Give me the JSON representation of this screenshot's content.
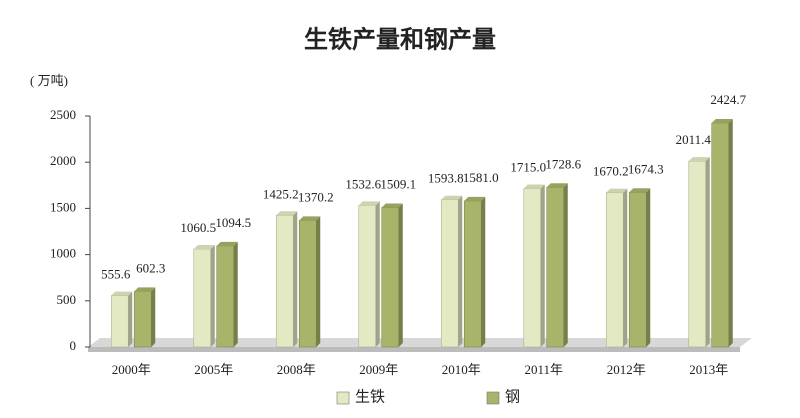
{
  "chart_data": {
    "type": "bar",
    "title": "生铁产量和钢产量",
    "y_label": "( 万吨)",
    "categories": [
      "2000年",
      "2005年",
      "2008年",
      "2009年",
      "2010年",
      "2011年",
      "2012年",
      "2013年"
    ],
    "series": [
      {
        "name": "生铁",
        "color": "#e3eac3",
        "values": [
          555.6,
          1060.5,
          1425.2,
          1532.6,
          1593.8,
          1715.0,
          1670.2,
          2011.4
        ],
        "value_labels": [
          "555.6",
          "1060.5",
          "1425.2",
          "1532.6",
          "1593.8",
          "1715.0",
          "1670.2",
          "2011.4"
        ]
      },
      {
        "name": "钢",
        "color": "#a8b46a",
        "values": [
          602.3,
          1094.5,
          1370.2,
          1509.1,
          1581.0,
          1728.6,
          1674.3,
          2424.7
        ],
        "value_labels": [
          "602.3",
          "1094.5",
          "1370.2",
          "1509.1",
          "1581.0",
          "1728.6",
          "1674.3",
          "2424.7"
        ]
      }
    ],
    "ylim": [
      0,
      2500
    ],
    "yticks": [
      0,
      500,
      1000,
      1500,
      2000,
      2500
    ],
    "legend": "bottom"
  }
}
